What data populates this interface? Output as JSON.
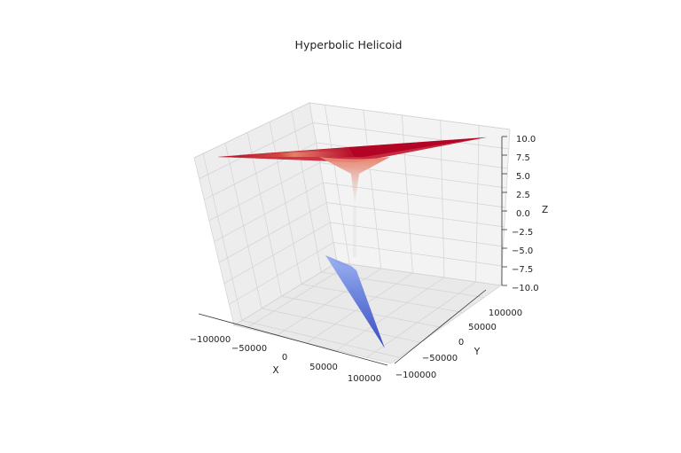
{
  "chart_data": {
    "type": "surface3d",
    "title": "Hyperbolic Helicoid",
    "xlabel": "X",
    "ylabel": "Y",
    "zlabel": "Z",
    "xlim": [
      -120000,
      120000
    ],
    "ylim": [
      -120000,
      120000
    ],
    "zlim": [
      -10,
      10
    ],
    "xticks": [
      "−100000",
      "−50000",
      "0",
      "50000",
      "100000"
    ],
    "yticks": [
      "−100000",
      "−50000",
      "0",
      "50000",
      "100000"
    ],
    "zticks": [
      "−10.0",
      "−7.5",
      "−5.0",
      "−2.5",
      "0.0",
      "2.5",
      "5.0",
      "7.5",
      "10.0"
    ],
    "grid": true,
    "colormap": "coolwarm",
    "colors": {
      "high": "#b40426",
      "mid": "#dddcdc",
      "low": "#3b4cc0"
    }
  }
}
